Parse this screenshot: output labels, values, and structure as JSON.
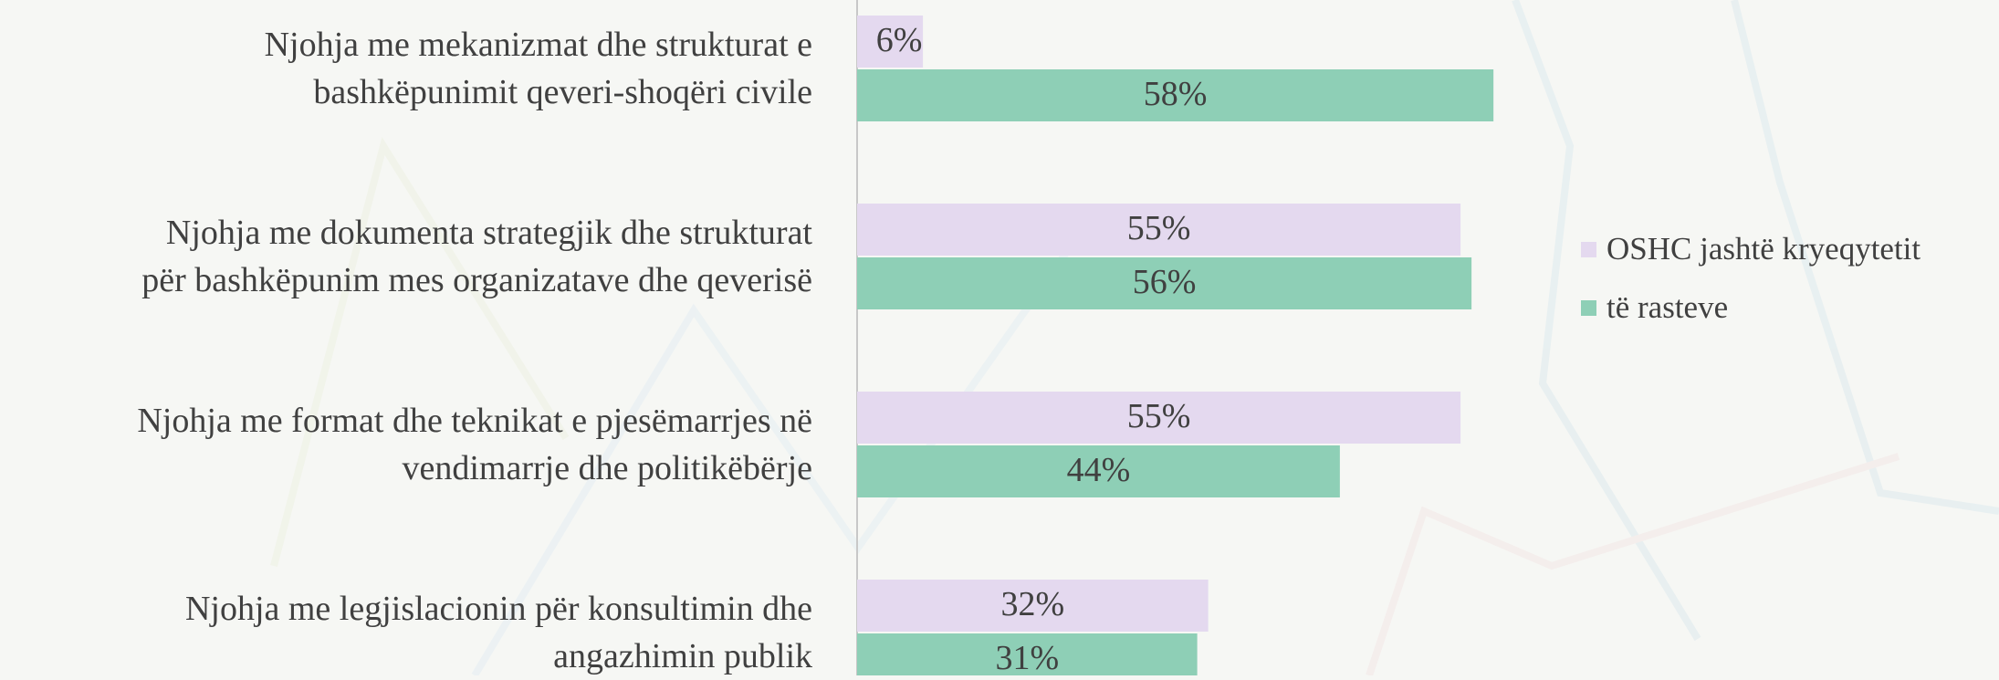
{
  "chart_data": {
    "type": "barh",
    "categories": [
      "Njohja me mekanizmat dhe strukturat e\nbashkëpunimit qeveri-shoqëri civile",
      "Njohja me dokumenta strategjik dhe strukturat\npër bashkëpunim mes organizatave dhe qeverisë",
      "Njohja me format dhe teknikat e pjesëmarrjes në\nvendimarrje dhe politikëbërje",
      "Njohja me legjislacionin për konsultimin dhe\nangazhimin publik"
    ],
    "series": [
      {
        "name": "OSHC jashtë kryeqytetit",
        "color": "#e4d9ef",
        "values": [
          6,
          55,
          55,
          32
        ],
        "value_labels": [
          "6%",
          "55%",
          "55%",
          "32%"
        ]
      },
      {
        "name": "të rasteve",
        "color": "#8ecfb6",
        "values": [
          58,
          56,
          44,
          31
        ],
        "value_labels": [
          "58%",
          "56%",
          "44%",
          "31%"
        ]
      }
    ],
    "xlim": [
      0,
      100
    ],
    "legend": "right"
  }
}
